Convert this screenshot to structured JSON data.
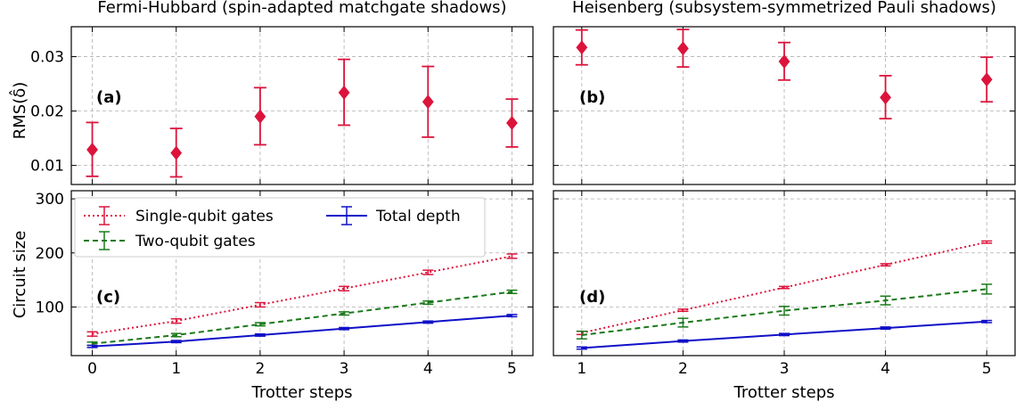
{
  "chart_data": [
    {
      "type": "scatter",
      "panel": "a",
      "title": "Fermi-Hubbard (spin-adapted matchgate shadows)",
      "panel_label": "(a)",
      "ylabel": "RMS(δ̂)",
      "xlabel": "",
      "x": [
        0,
        1,
        2,
        3,
        4,
        5
      ],
      "xlim": [
        -0.25,
        5.25
      ],
      "ylim": [
        0.0065,
        0.0355
      ],
      "yticks": [
        0.01,
        0.02,
        0.03
      ],
      "ytick_labels": [
        "0.01",
        "0.02",
        "0.03"
      ],
      "grid": true,
      "series": [
        {
          "color": "#dc143c",
          "marker": "diamond",
          "values": [
            0.0129,
            0.0123,
            0.019,
            0.0234,
            0.0217,
            0.0178
          ],
          "err_low": [
            0.008,
            0.0079,
            0.0138,
            0.0174,
            0.0152,
            0.0134
          ],
          "err_high": [
            0.0179,
            0.0168,
            0.0243,
            0.0295,
            0.0282,
            0.0222
          ]
        }
      ]
    },
    {
      "type": "scatter",
      "panel": "b",
      "title": "Heisenberg (subsystem-symmetrized Pauli shadows)",
      "panel_label": "(b)",
      "ylabel": "",
      "xlabel": "",
      "x": [
        1,
        2,
        3,
        4,
        5
      ],
      "xlim": [
        0.72,
        5.28
      ],
      "ylim": [
        0.0065,
        0.0355
      ],
      "yticks": [
        0.01,
        0.02,
        0.03
      ],
      "grid": true,
      "series": [
        {
          "color": "#dc143c",
          "marker": "diamond",
          "values": [
            0.0317,
            0.0315,
            0.0291,
            0.0225,
            0.0258
          ],
          "err_low": [
            0.0285,
            0.0281,
            0.0257,
            0.0186,
            0.0217
          ],
          "err_high": [
            0.0349,
            0.035,
            0.0326,
            0.0265,
            0.0299
          ]
        }
      ]
    },
    {
      "type": "line",
      "panel": "c",
      "panel_label": "(c)",
      "ylabel": "Circuit size",
      "xlabel": "Trotter steps",
      "x": [
        0,
        1,
        2,
        3,
        4,
        5
      ],
      "xticks": [
        "0",
        "1",
        "2",
        "3",
        "4",
        "5"
      ],
      "xlim": [
        -0.25,
        5.25
      ],
      "ylim": [
        10,
        315
      ],
      "yticks": [
        100,
        200,
        300
      ],
      "ytick_labels": [
        "100",
        "200",
        "300"
      ],
      "grid": true,
      "legend": "top-left",
      "series": [
        {
          "name": "Single-qubit gates",
          "color": "#dc143c",
          "style": "dotted",
          "values": [
            50,
            74,
            104,
            134,
            164,
            194
          ],
          "err": [
            4,
            4,
            4,
            4,
            4,
            4
          ]
        },
        {
          "name": "Two-qubit gates",
          "color": "#1a7a1a",
          "style": "dashed",
          "values": [
            32,
            48,
            68,
            88,
            108,
            128
          ],
          "err": [
            3,
            3,
            3,
            3,
            3,
            3
          ]
        },
        {
          "name": "Total depth",
          "color": "#1010c8",
          "style": "solid",
          "values": [
            27,
            36,
            48,
            60,
            72,
            84
          ],
          "err": [
            2,
            2,
            2,
            2,
            2,
            2
          ]
        }
      ]
    },
    {
      "type": "line",
      "panel": "d",
      "panel_label": "(d)",
      "ylabel": "",
      "xlabel": "Trotter steps",
      "x": [
        1,
        2,
        3,
        4,
        5
      ],
      "xticks": [
        "1",
        "2",
        "3",
        "4",
        "5"
      ],
      "xlim": [
        0.72,
        5.28
      ],
      "ylim": [
        10,
        315
      ],
      "yticks": [
        100,
        200,
        300
      ],
      "grid": true,
      "series": [
        {
          "name": "Single-qubit gates",
          "color": "#dc143c",
          "style": "dotted",
          "values": [
            52,
            94,
            136,
            178,
            220
          ],
          "err": [
            3,
            2,
            2,
            2,
            2
          ]
        },
        {
          "name": "Two-qubit gates",
          "color": "#1a7a1a",
          "style": "dashed",
          "values": [
            48,
            71,
            93,
            112,
            133
          ],
          "err": [
            7,
            8,
            8,
            8,
            9
          ]
        },
        {
          "name": "Total depth",
          "color": "#1010c8",
          "style": "solid",
          "values": [
            24,
            37,
            49,
            61,
            73
          ],
          "err": [
            2,
            2,
            2,
            2,
            2
          ]
        }
      ]
    }
  ]
}
